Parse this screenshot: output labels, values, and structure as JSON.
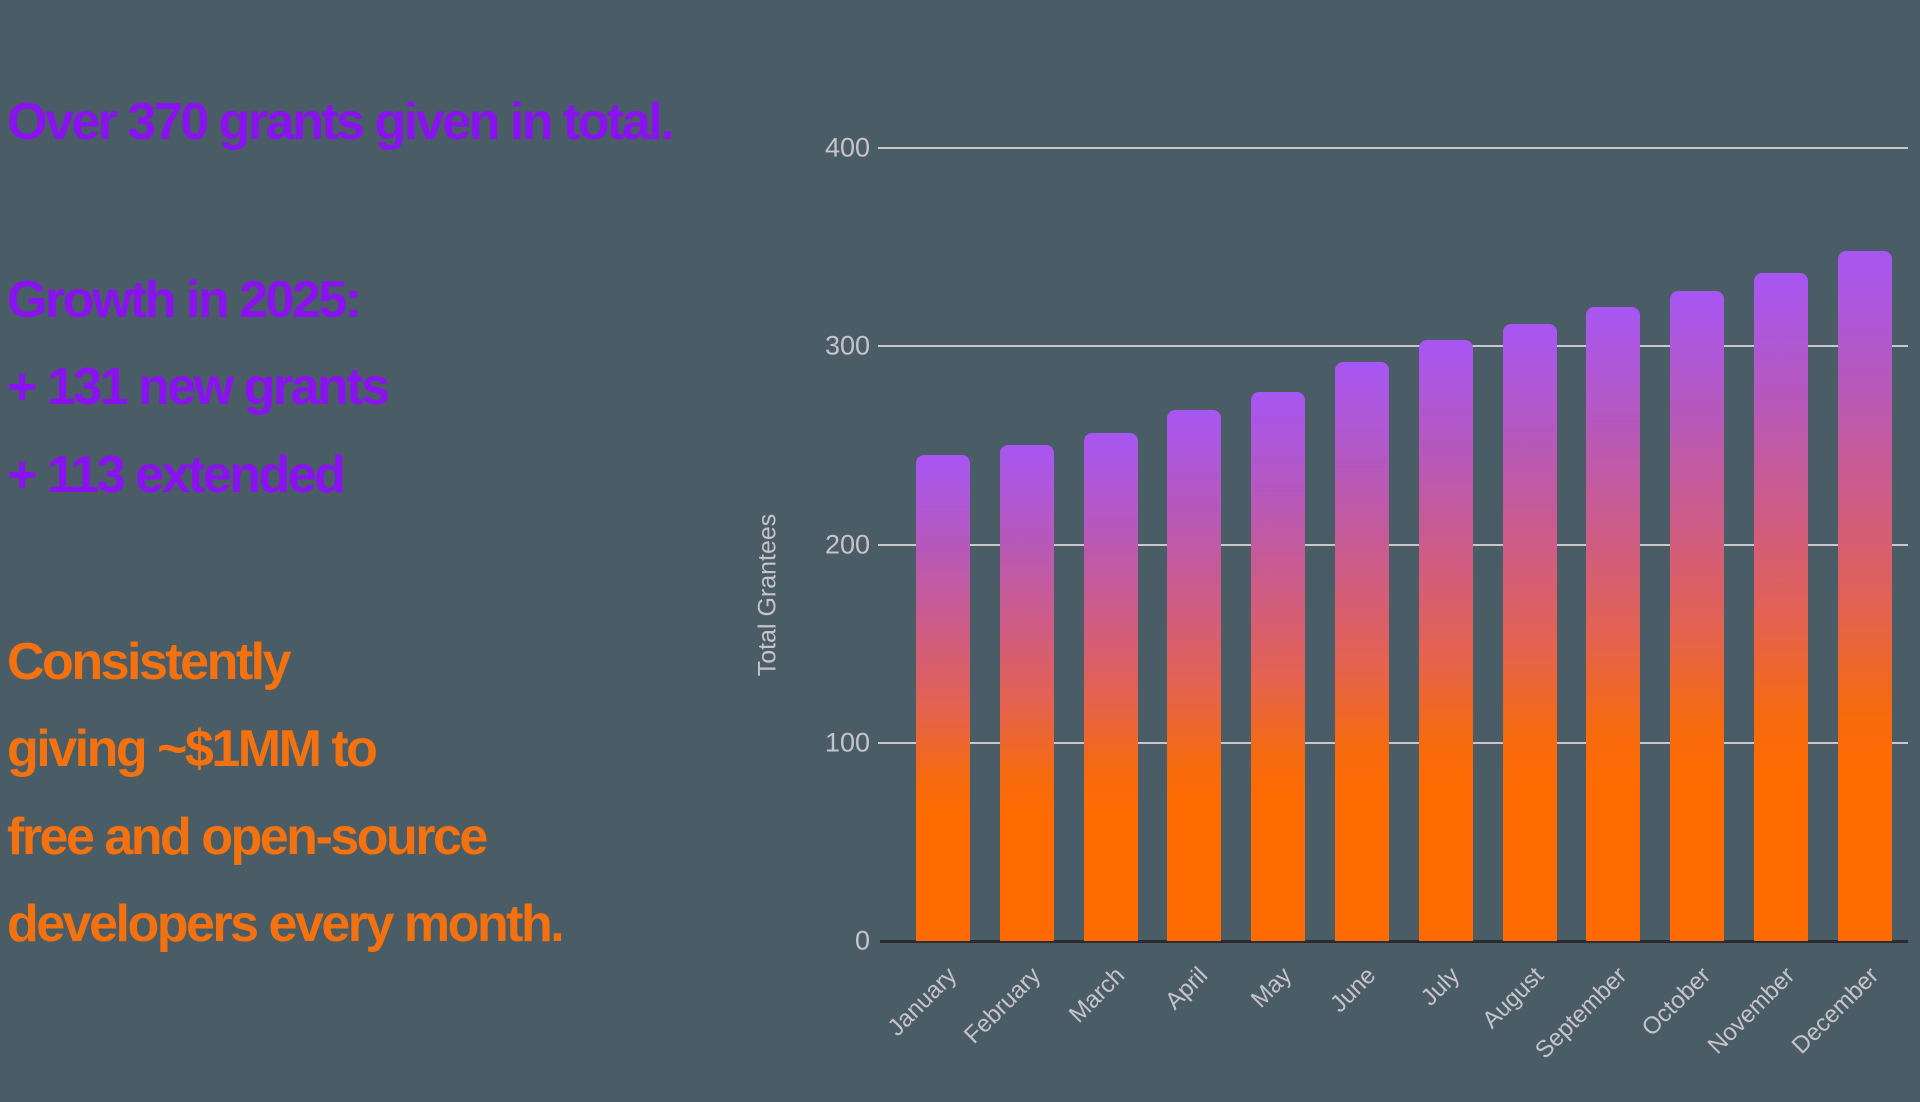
{
  "page": {
    "background_color": "#4A5C65"
  },
  "panel": {
    "headline": "Over 370 grants given in total.",
    "growth": {
      "title": "Growth in 2025:",
      "lines": [
        "+ 131 new grants",
        "+ 113 extended"
      ]
    },
    "giving": {
      "lines": [
        "Consistently",
        "giving ~$1MM to",
        "free and open-source",
        "developers every month."
      ]
    },
    "colors": {
      "purple_text": "#8A12F0",
      "orange_text": "#F3710E"
    }
  },
  "chart_data": {
    "type": "bar",
    "title": "",
    "categories": [
      "January",
      "February",
      "March",
      "April",
      "May",
      "June",
      "July",
      "August",
      "September",
      "October",
      "November",
      "December"
    ],
    "values": [
      245,
      250,
      256,
      268,
      277,
      292,
      303,
      311,
      320,
      328,
      337,
      348
    ],
    "xlabel": "",
    "ylabel": "Total Grantees",
    "ylim": [
      0,
      400
    ],
    "yticks": [
      0,
      100,
      200,
      300,
      400
    ],
    "grid": true,
    "legend_position": "none",
    "x_tick_rotation_deg": -45,
    "bar_gradient_stops": [
      {
        "offset": "0%",
        "color": "#A756F2"
      },
      {
        "offset": "18%",
        "color": "#B558BE"
      },
      {
        "offset": "36%",
        "color": "#CE5C85"
      },
      {
        "offset": "52%",
        "color": "#E46250"
      },
      {
        "offset": "66%",
        "color": "#F56A10"
      },
      {
        "offset": "75%",
        "color": "#FF6B00"
      },
      {
        "offset": "100%",
        "color": "#FF6B00"
      }
    ],
    "axis_colors": {
      "tick_label_color": "#C7C3CB",
      "grid_color": "#C9C7CC",
      "baseline_color": "#2B2B30"
    }
  }
}
